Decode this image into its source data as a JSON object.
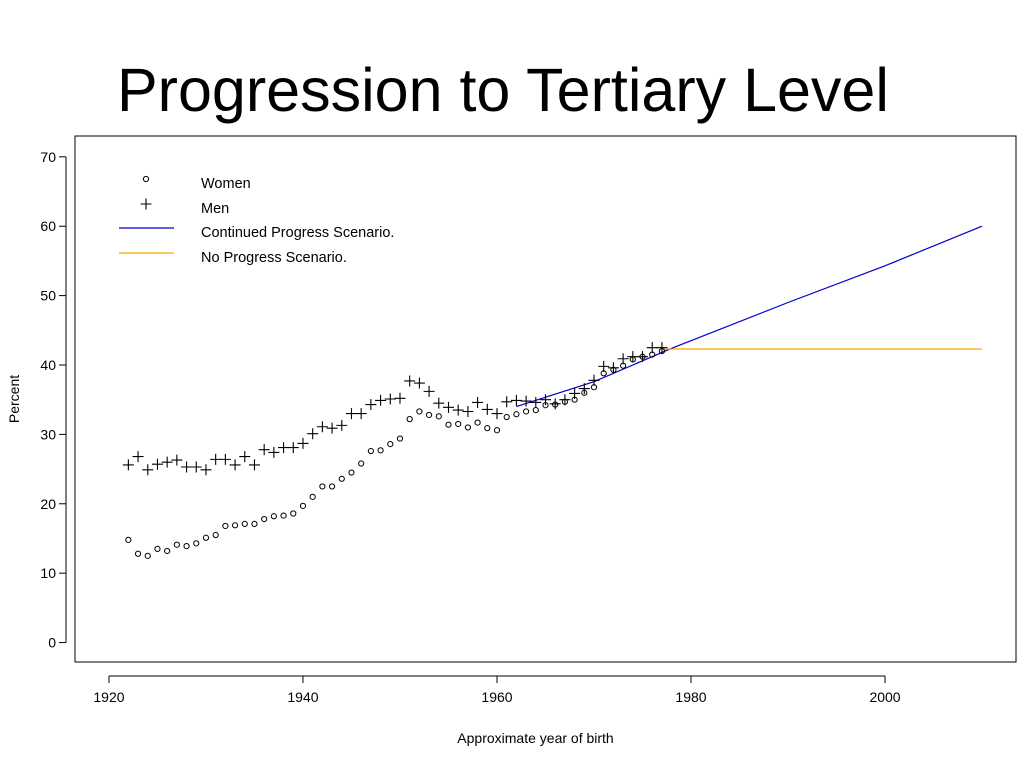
{
  "slide": {
    "title": "Progression to Tertiary Level"
  },
  "chart_data": {
    "type": "scatter",
    "title": "",
    "xlabel": "Approximate year of birth",
    "ylabel": "Percent",
    "xlim": [
      1916.5,
      2013.5
    ],
    "ylim": [
      -2.8,
      73
    ],
    "xticks": [
      1920,
      1940,
      1960,
      1980,
      2000
    ],
    "yticks": [
      0,
      10,
      20,
      30,
      40,
      50,
      60,
      70
    ],
    "grid": false,
    "legend_position": "top-left",
    "legend": [
      {
        "label": "Women",
        "kind": "circle-marker"
      },
      {
        "label": "Men",
        "kind": "plus-marker"
      },
      {
        "label": "Continued Progress Scenario.",
        "kind": "line",
        "color": "#0000cc"
      },
      {
        "label": "No Progress Scenario.",
        "kind": "line",
        "color": "#ffa500"
      }
    ],
    "series": [
      {
        "name": "Women",
        "marker": "circle",
        "color": "#000000",
        "x": [
          1922,
          1923,
          1924,
          1925,
          1926,
          1927,
          1928,
          1929,
          1930,
          1931,
          1932,
          1933,
          1934,
          1935,
          1936,
          1937,
          1938,
          1939,
          1940,
          1941,
          1942,
          1943,
          1944,
          1945,
          1946,
          1947,
          1948,
          1949,
          1950,
          1951,
          1952,
          1953,
          1954,
          1955,
          1956,
          1957,
          1958,
          1959,
          1960,
          1961,
          1962,
          1963,
          1964,
          1965,
          1966,
          1967,
          1968,
          1969,
          1970,
          1971,
          1972,
          1973,
          1974,
          1975,
          1976,
          1977
        ],
        "y": [
          14.8,
          12.8,
          12.5,
          13.5,
          13.2,
          14.1,
          13.9,
          14.3,
          15.1,
          15.5,
          16.8,
          16.9,
          17.1,
          17.1,
          17.8,
          18.2,
          18.3,
          18.6,
          19.7,
          21.0,
          22.5,
          22.5,
          23.6,
          24.5,
          25.8,
          27.6,
          27.7,
          28.6,
          29.4,
          32.2,
          33.3,
          32.8,
          32.6,
          31.4,
          31.5,
          31.0,
          31.7,
          30.9,
          30.6,
          32.5,
          32.9,
          33.3,
          33.5,
          34.2,
          34.3,
          34.7,
          35.0,
          36.0,
          36.8,
          38.8,
          39.3,
          39.9,
          40.8,
          41.2,
          41.5,
          42.0
        ]
      },
      {
        "name": "Men",
        "marker": "plus",
        "color": "#000000",
        "x": [
          1922,
          1923,
          1924,
          1925,
          1926,
          1927,
          1928,
          1929,
          1930,
          1931,
          1932,
          1933,
          1934,
          1935,
          1936,
          1937,
          1938,
          1939,
          1940,
          1941,
          1942,
          1943,
          1944,
          1945,
          1946,
          1947,
          1948,
          1949,
          1950,
          1951,
          1952,
          1953,
          1954,
          1955,
          1956,
          1957,
          1958,
          1959,
          1960,
          1961,
          1962,
          1963,
          1964,
          1965,
          1966,
          1967,
          1968,
          1969,
          1970,
          1971,
          1972,
          1973,
          1974,
          1975,
          1976,
          1977
        ],
        "y": [
          25.6,
          26.8,
          24.9,
          25.7,
          26.0,
          26.3,
          25.3,
          25.3,
          24.9,
          26.4,
          26.4,
          25.6,
          26.8,
          25.6,
          27.8,
          27.4,
          28.1,
          28.1,
          28.7,
          30.1,
          31.1,
          30.9,
          31.3,
          33.0,
          33.0,
          34.3,
          34.9,
          35.1,
          35.2,
          37.7,
          37.4,
          36.2,
          34.5,
          33.9,
          33.5,
          33.3,
          34.6,
          33.6,
          33.0,
          34.7,
          34.9,
          34.8,
          34.6,
          35.0,
          34.4,
          35.0,
          35.9,
          36.6,
          37.8,
          39.8,
          39.6,
          40.9,
          41.2,
          41.2,
          42.5,
          42.5
        ]
      },
      {
        "name": "Continued Progress Scenario.",
        "type": "line",
        "color": "#0000cc",
        "x": [
          1962,
          1970,
          1978,
          1980,
          1990,
          2000,
          2010
        ],
        "y": [
          34.0,
          37.6,
          42.4,
          43.5,
          49.0,
          54.3,
          60.0
        ]
      },
      {
        "name": "No Progress Scenario.",
        "type": "line",
        "color": "#ffa500",
        "x": [
          1977,
          2010
        ],
        "y": [
          42.3,
          42.3
        ]
      }
    ]
  }
}
